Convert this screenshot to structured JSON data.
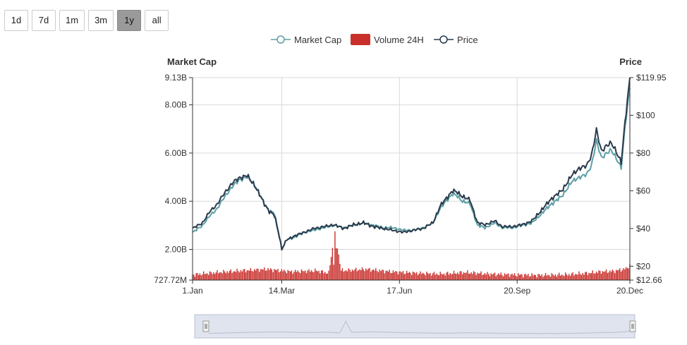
{
  "range_buttons": [
    {
      "label": "1d",
      "active": false
    },
    {
      "label": "7d",
      "active": false
    },
    {
      "label": "1m",
      "active": false
    },
    {
      "label": "3m",
      "active": false
    },
    {
      "label": "1y",
      "active": true
    },
    {
      "label": "all",
      "active": false
    }
  ],
  "colors": {
    "market_cap": "#5d9fa6",
    "price": "#2a3a4b",
    "volume": "#c9302c",
    "grid": "#d9d9d9",
    "navigator_fill": "#dfe4ee",
    "navigator_line": "#b8c1d1"
  },
  "chart_data": {
    "type": "line",
    "legend": [
      "Market Cap",
      "Volume 24H",
      "Price"
    ],
    "left_axis_title": "Market Cap",
    "right_axis_title": "Price",
    "left_ticks": [
      "9.13B",
      "8.00B",
      "6.00B",
      "4.00B",
      "2.00B",
      "727.72M"
    ],
    "left_tick_values": [
      9.13,
      8.0,
      6.0,
      4.0,
      2.0,
      0.72772
    ],
    "right_ticks": [
      "$119.95",
      "$100",
      "$80",
      "$60",
      "$40",
      "$20",
      "$12.66"
    ],
    "right_tick_values": [
      119.95,
      100,
      80,
      60,
      40,
      20,
      12.66
    ],
    "x_ticks": [
      "1.Jan",
      "14.Mar",
      "17.Jun",
      "20.Sep",
      "20.Dec"
    ],
    "x_tick_days": [
      0,
      72,
      167,
      262,
      353
    ],
    "left_range": [
      0.72772,
      9.13
    ],
    "right_range": [
      12.66,
      119.95
    ],
    "x_range_days": [
      0,
      353
    ],
    "series": [
      {
        "name": "Market Cap",
        "axis": "left",
        "x_days": [
          0,
          8,
          14,
          20,
          26,
          32,
          38,
          44,
          50,
          54,
          58,
          62,
          66,
          70,
          72,
          76,
          82,
          90,
          98,
          106,
          114,
          122,
          130,
          138,
          146,
          154,
          162,
          170,
          178,
          186,
          194,
          200,
          206,
          210,
          214,
          218,
          224,
          230,
          236,
          240,
          244,
          250,
          258,
          266,
          274,
          282,
          290,
          298,
          306,
          312,
          318,
          322,
          326,
          330,
          334,
          338,
          342,
          346,
          350,
          353
        ],
        "values": [
          2.7,
          3.0,
          3.4,
          3.7,
          4.2,
          4.6,
          4.9,
          5.0,
          4.7,
          4.3,
          3.9,
          3.6,
          3.5,
          2.6,
          2.0,
          2.4,
          2.5,
          2.7,
          2.8,
          2.9,
          3.0,
          2.9,
          3.0,
          3.1,
          3.0,
          2.9,
          2.9,
          2.8,
          2.8,
          2.9,
          3.1,
          3.7,
          4.1,
          4.3,
          4.2,
          4.0,
          3.9,
          3.0,
          2.9,
          3.0,
          3.1,
          2.9,
          2.9,
          3.0,
          3.1,
          3.5,
          3.9,
          4.2,
          4.8,
          5.0,
          5.1,
          5.5,
          6.5,
          5.8,
          6.0,
          6.1,
          5.8,
          5.4,
          7.5,
          8.7
        ]
      },
      {
        "name": "Price",
        "axis": "right",
        "x_days": [
          0,
          8,
          14,
          20,
          26,
          32,
          38,
          44,
          50,
          54,
          58,
          62,
          66,
          70,
          72,
          76,
          82,
          90,
          98,
          106,
          114,
          122,
          130,
          138,
          146,
          154,
          162,
          170,
          178,
          186,
          194,
          200,
          206,
          210,
          214,
          218,
          224,
          230,
          236,
          240,
          244,
          250,
          258,
          266,
          274,
          282,
          290,
          298,
          306,
          312,
          318,
          322,
          326,
          330,
          334,
          338,
          342,
          346,
          350,
          353
        ],
        "values": [
          40,
          43,
          49,
          53,
          59,
          64,
          67,
          68,
          63,
          58,
          53,
          49,
          47,
          36,
          29,
          34,
          36,
          38,
          40,
          41,
          42,
          40,
          42,
          43,
          41,
          40,
          39,
          38,
          39,
          40,
          43,
          52,
          57,
          60,
          59,
          57,
          55,
          43,
          42,
          43,
          44,
          41,
          41,
          42,
          44,
          50,
          56,
          60,
          68,
          72,
          73,
          79,
          92,
          81,
          84,
          85,
          81,
          75,
          102,
          119.95
        ]
      },
      {
        "name": "Volume 24H",
        "axis": "left",
        "x_days": [
          0,
          20,
          40,
          60,
          80,
          100,
          110,
          115,
          120,
          140,
          160,
          180,
          200,
          220,
          240,
          260,
          280,
          300,
          320,
          330,
          340,
          350,
          353
        ],
        "values": [
          0.95,
          1.05,
          1.12,
          1.18,
          1.08,
          1.12,
          1.02,
          2.75,
          1.12,
          1.18,
          1.08,
          1.02,
          0.98,
          1.05,
          0.98,
          0.95,
          0.93,
          0.95,
          1.02,
          1.08,
          1.1,
          1.2,
          1.35
        ]
      }
    ]
  }
}
